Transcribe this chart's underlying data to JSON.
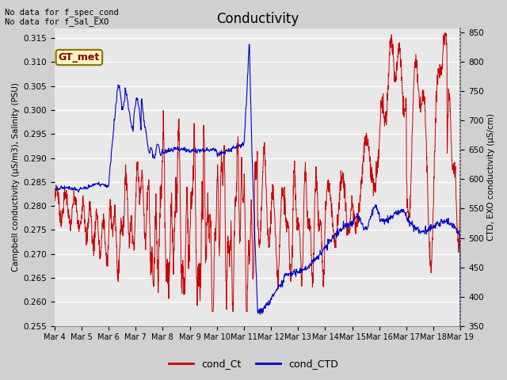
{
  "title": "Conductivity",
  "ylabel_left": "Campbell conductivity (μS/m3), Salinity (PSU)",
  "ylabel_right": "CTD, EXO conductivity (μS/cm)",
  "xlabel_note": "No data for f_spec_cond\nNo data for f_Sal_EXO",
  "gt_label": "GT_met",
  "legend_labels": [
    "cond_Ct",
    "cond_CTD"
  ],
  "ylim_left": [
    0.255,
    0.317
  ],
  "ylim_right": [
    350,
    857
  ],
  "yticks_left": [
    0.255,
    0.26,
    0.265,
    0.27,
    0.275,
    0.28,
    0.285,
    0.29,
    0.295,
    0.3,
    0.305,
    0.31,
    0.315
  ],
  "yticks_right": [
    350,
    400,
    450,
    500,
    550,
    600,
    650,
    700,
    750,
    800,
    850
  ],
  "xtick_labels": [
    "Mar 4",
    "Mar 5",
    "Mar 6",
    "Mar 7",
    "Mar 8",
    "Mar 9",
    "Mar 10",
    "Mar 11",
    "Mar 12",
    "Mar 13",
    "Mar 14",
    "Mar 15",
    "Mar 16",
    "Mar 17",
    "Mar 18",
    "Mar 19"
  ],
  "color_red": "#cc0000",
  "color_blue": "#0000cc",
  "bg_fig": "#d0d0d0",
  "bg_axes": "#e8e8e8"
}
